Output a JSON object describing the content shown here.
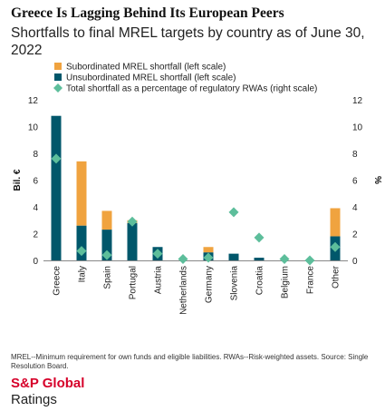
{
  "header": {
    "title": "Greece Is Lagging Behind Its European Peers",
    "subtitle": "Shortfalls to final MREL targets by country as of June 30, 2022"
  },
  "footer": {
    "note": "MREL--Minimum requirement for own funds and eligible liabilities. RWAs--Risk-weighted assets. Source: Single Resolution Board.",
    "brand_line1": "S&P Global",
    "brand_line2": "Ratings"
  },
  "colors": {
    "subordinated": "#f0a33f",
    "unsubordinated": "#00576b",
    "total_pct": "#5dbe9b",
    "brand": "#d6002a"
  },
  "chart_data": {
    "type": "bar",
    "stacked": true,
    "categories": [
      "Greece",
      "Italy",
      "Spain",
      "Portugal",
      "Austria",
      "Netherlands",
      "Germany",
      "Slovenia",
      "Croatia",
      "Belgium",
      "France",
      "Other"
    ],
    "series": [
      {
        "name": "Subordinated MREL shortfall (left scale)",
        "axis": "left",
        "values": [
          0,
          4.8,
          1.4,
          0.2,
          0,
          0,
          0.4,
          0,
          0,
          0,
          0,
          2.1
        ]
      },
      {
        "name": "Unsubordinated MREL shortfall (left scale)",
        "axis": "left",
        "values": [
          10.8,
          2.6,
          2.3,
          2.8,
          1.0,
          0,
          0.6,
          0.5,
          0.2,
          0,
          0,
          1.8
        ]
      },
      {
        "name": "Total shortfall as a percentage of regulatory RWAs (right scale)",
        "axis": "right",
        "marker": "diamond",
        "values": [
          7.6,
          0.7,
          0.4,
          2.9,
          0.5,
          0.1,
          0.2,
          3.6,
          1.7,
          0.1,
          0.0,
          1.0
        ]
      }
    ],
    "ylabel_left": "Bil. €",
    "ylabel_right": "%",
    "ylim_left": [
      0,
      12
    ],
    "ylim_right": [
      0,
      12
    ],
    "yticks": [
      "0",
      "2",
      "4",
      "6",
      "8",
      "10",
      "12"
    ],
    "grid": false,
    "legend_position": "top-left"
  }
}
